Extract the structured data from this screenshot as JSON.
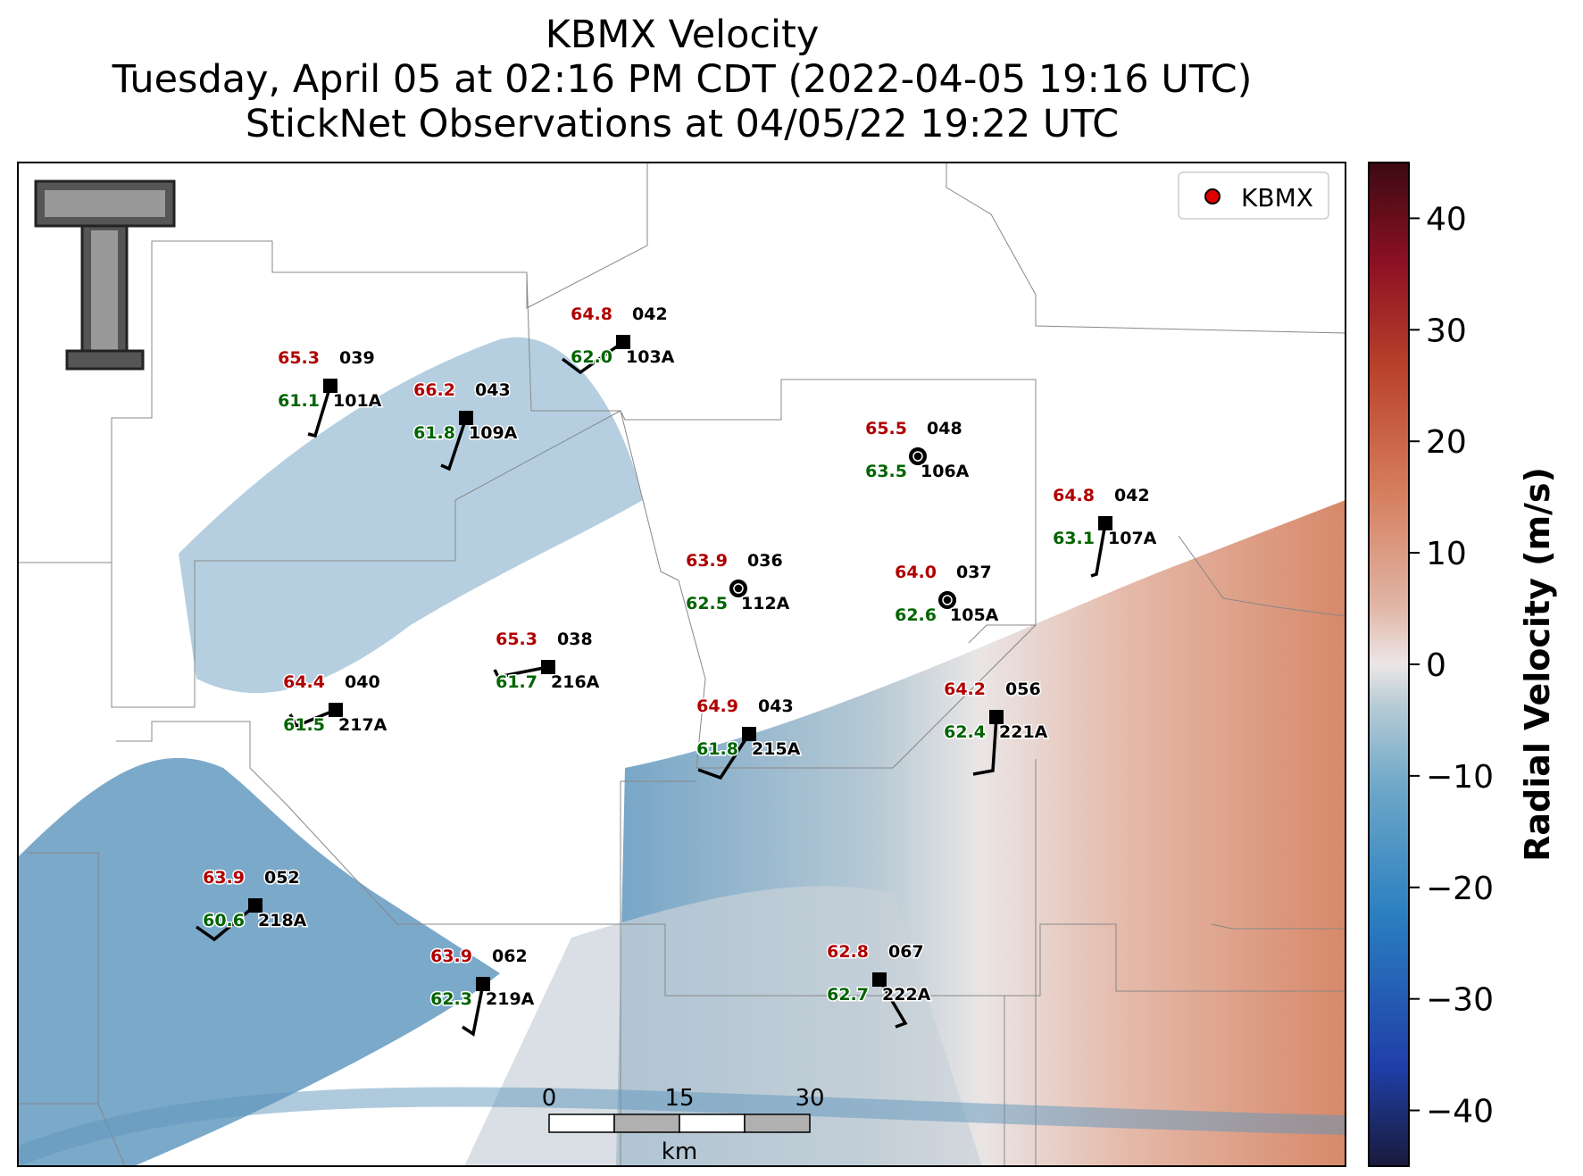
{
  "title": {
    "line1": "KBMX Velocity",
    "line2": "Tuesday, April 05 at 02:16 PM CDT (2022-04-05 19:16 UTC)",
    "line3": "StickNet Observations at 04/05/22 19:22 UTC"
  },
  "legend": {
    "label": "KBMX",
    "marker_color": "#e00000"
  },
  "colorbar": {
    "label": "Radial Velocity (m/s)",
    "ticks": [
      "40",
      "30",
      "20",
      "10",
      "0",
      "−10",
      "−20",
      "−30",
      "−40"
    ],
    "range": [
      -45,
      45
    ],
    "colors": [
      "#1a1a3a",
      "#1f3fa8",
      "#2a7fc0",
      "#6fa8c8",
      "#b8ccd6",
      "#ece6e6",
      "#e0b4a4",
      "#d47a58",
      "#b8402a",
      "#8c1024",
      "#3c0a12"
    ]
  },
  "scalebar": {
    "ticks": [
      "0",
      "15",
      "30"
    ],
    "unit": "km"
  },
  "stations": [
    {
      "id": "101A",
      "temp": "65.3",
      "dew": "61.1",
      "dir": "039"
    },
    {
      "id": "109A",
      "temp": "66.2",
      "dew": "61.8",
      "dir": "043"
    },
    {
      "id": "103A",
      "temp": "64.8",
      "dew": "62.0",
      "dir": "042"
    },
    {
      "id": "106A",
      "temp": "65.5",
      "dew": "63.5",
      "dir": "048"
    },
    {
      "id": "107A",
      "temp": "64.8",
      "dew": "63.1",
      "dir": "042"
    },
    {
      "id": "112A",
      "temp": "63.9",
      "dew": "62.5",
      "dir": "036"
    },
    {
      "id": "105A",
      "temp": "64.0",
      "dew": "62.6",
      "dir": "037"
    },
    {
      "id": "216A",
      "temp": "65.3",
      "dew": "61.7",
      "dir": "038"
    },
    {
      "id": "217A",
      "temp": "64.4",
      "dew": "61.5",
      "dir": "040"
    },
    {
      "id": "215A",
      "temp": "64.9",
      "dew": "61.8",
      "dir": "043"
    },
    {
      "id": "221A",
      "temp": "64.2",
      "dew": "62.4",
      "dir": "056"
    },
    {
      "id": "218A",
      "temp": "63.9",
      "dew": "60.6",
      "dir": "052"
    },
    {
      "id": "219A",
      "temp": "63.9",
      "dew": "62.3",
      "dir": "062"
    },
    {
      "id": "222A",
      "temp": "62.8",
      "dew": "62.7",
      "dir": "067"
    }
  ],
  "colors": {
    "temp": "#b00000",
    "dew": "#006400",
    "text": "#000000"
  }
}
